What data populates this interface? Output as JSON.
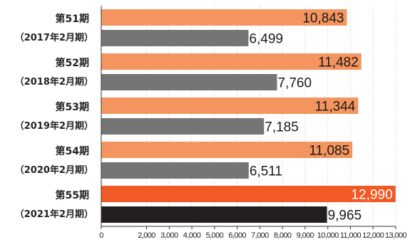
{
  "chart_data": {
    "type": "bar",
    "orientation": "horizontal",
    "categories": [
      {
        "period": "第51期",
        "fiscal": "（2017年2月期）"
      },
      {
        "period": "第52期",
        "fiscal": "（2018年2月期）"
      },
      {
        "period": "第53期",
        "fiscal": "（2019年2月期）"
      },
      {
        "period": "第54期",
        "fiscal": "（2020年2月期）"
      },
      {
        "period": "第55期",
        "fiscal": "（2021年2月期）"
      }
    ],
    "series": [
      {
        "values": [
          10843,
          11482,
          11344,
          11085,
          12990
        ],
        "labels": [
          "10,843",
          "11,482",
          "11,344",
          "11,085",
          "12,990"
        ],
        "color": "#f4955f",
        "highlight_color": "#f15a24"
      },
      {
        "values": [
          6499,
          7760,
          7185,
          6511,
          9965
        ],
        "labels": [
          "6,499",
          "7,760",
          "7,185",
          "6,511",
          "9,965"
        ],
        "color": "#757575",
        "highlight_color": "#231f20"
      }
    ],
    "highlight_index": 4,
    "xlim": [
      0,
      13000
    ],
    "xticks": [
      0,
      2000,
      3000,
      4000,
      5000,
      6000,
      7000,
      8000,
      9000,
      10000,
      11000,
      12000,
      13000
    ],
    "xtick_labels": [
      "0",
      "2,000",
      "3,000",
      "4,000",
      "5,000",
      "6,000",
      "7,000",
      "8,000",
      "9,000",
      "10,000",
      "11,000",
      "12,000",
      "13,000"
    ],
    "grid": true,
    "legend": "none",
    "title": "",
    "xlabel": "",
    "ylabel": "",
    "colors": {
      "grid": "#ffffff",
      "axis": "#333333",
      "text": "#222222"
    }
  }
}
